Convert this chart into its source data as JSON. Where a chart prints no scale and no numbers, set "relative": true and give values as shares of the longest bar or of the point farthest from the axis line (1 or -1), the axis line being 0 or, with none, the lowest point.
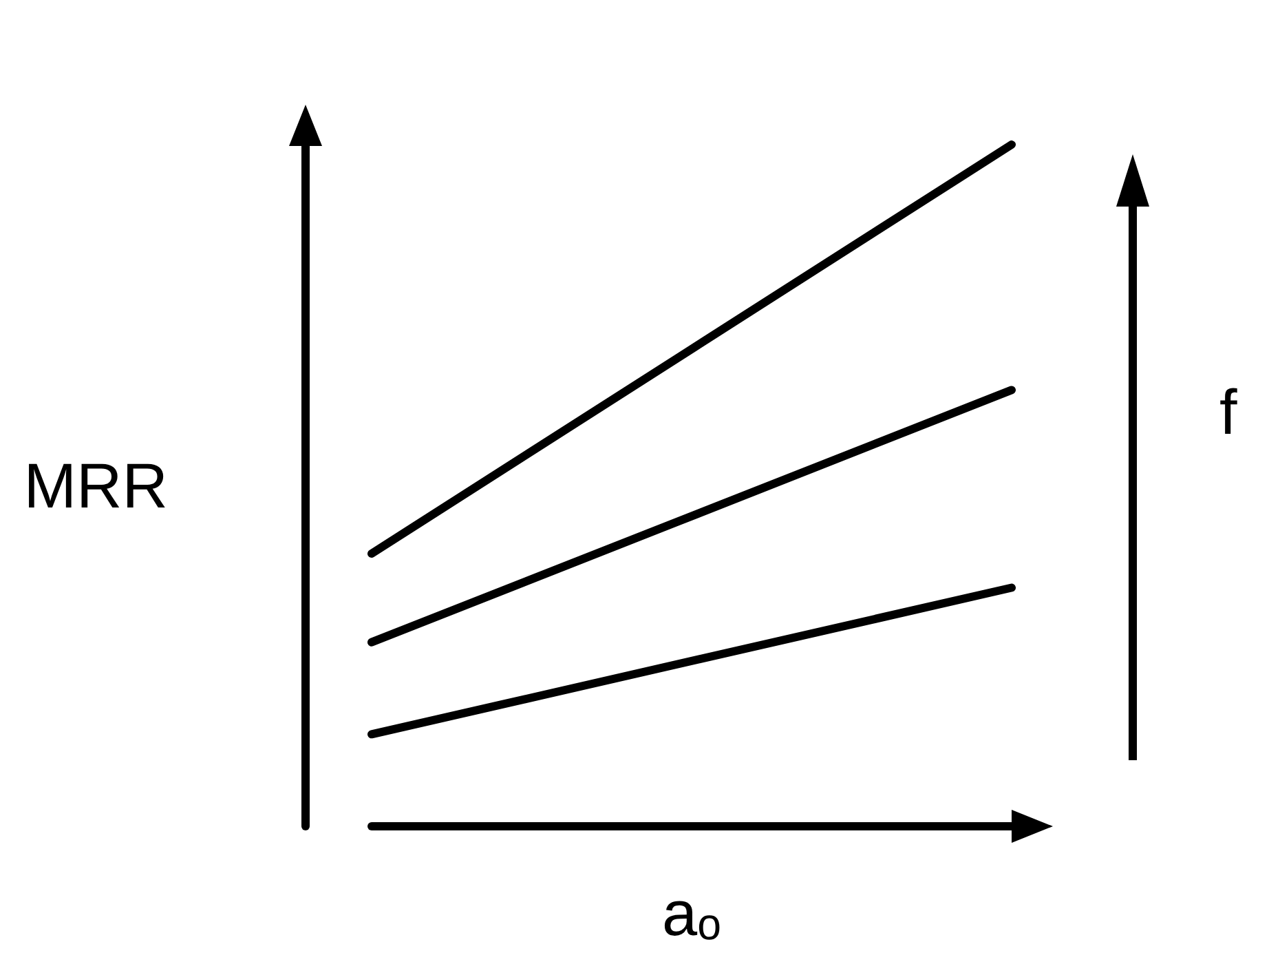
{
  "chart_data": {
    "type": "line",
    "relative": true,
    "xlabel": "aₒ",
    "ylabel": "MRR",
    "annotations": [
      "f"
    ],
    "categories": [
      null,
      null
    ],
    "series": [
      {
        "color": "#000000",
        "values": [
          0.4,
          1
        ]
      },
      {
        "color": "#000000",
        "values": [
          0.27,
          0.64
        ]
      },
      {
        "color": "#000000",
        "values": [
          0.135,
          0.35
        ]
      }
    ],
    "marker": "none",
    "line_style": "solid",
    "grid": false
  }
}
